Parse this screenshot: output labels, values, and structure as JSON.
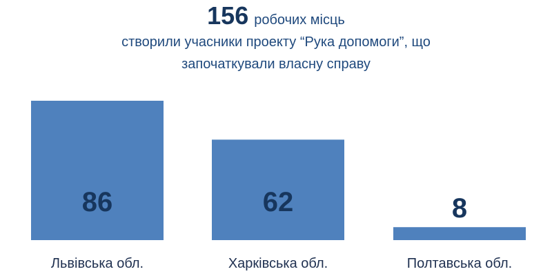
{
  "title": {
    "number": "156",
    "line1_rest": "робочих місць",
    "line2": "створили учасники проекту “Рука допомоги”, що",
    "line3": "започаткували власну справу"
  },
  "chart_data": {
    "type": "bar",
    "categories": [
      "Львівська обл.",
      "Харківська обл.",
      "Полтавська обл."
    ],
    "values": [
      86,
      62,
      8
    ],
    "data_labels": [
      "86",
      "62",
      "8"
    ],
    "xlabel": "",
    "ylabel": "",
    "ylim": [
      0,
      86
    ],
    "grid": false,
    "colors": {
      "bar": "#4f81bd",
      "value_text": "#17365d",
      "title": "#1f497d"
    }
  }
}
